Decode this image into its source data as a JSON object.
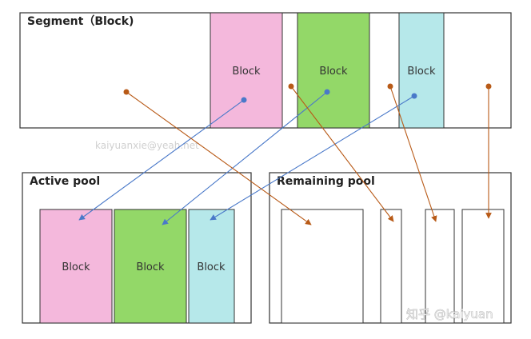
{
  "segment": {
    "title": "Segment（Block)"
  },
  "active_pool": {
    "title": "Active pool"
  },
  "remaining_pool": {
    "title": "Remaining pool"
  },
  "block_label": "Block",
  "watermarks": {
    "email": "kaiyuanxie@yeah.net",
    "zhihu": "知乎 @kaiyuan"
  },
  "colors": {
    "pink": "#f4b8dc",
    "green": "#93d868",
    "cyan": "#b6e8ea",
    "blue_arrow": "#4a79c9",
    "orange_arrow": "#b85a17",
    "border": "#333333"
  }
}
